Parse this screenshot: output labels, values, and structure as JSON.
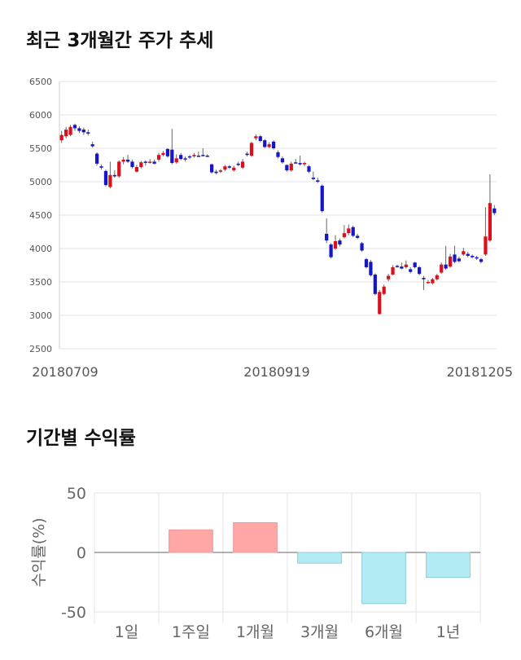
{
  "sections": {
    "price_title": "최근 3개월간 주가 추세",
    "returns_title": "기간별 수익률"
  },
  "colors": {
    "up": "#d9101e",
    "down": "#1416c8",
    "wick": "#666666",
    "pos_bar": "#ffa7a7",
    "neg_bar": "#b2ebf4",
    "grid": "#e3e3e3"
  },
  "chart_data": [
    {
      "type": "candlestick",
      "title": "최근 3개월간 주가 추세",
      "ylim": [
        2500,
        6500
      ],
      "yticks": [
        2500,
        3000,
        3500,
        4000,
        4500,
        5000,
        5500,
        6000,
        6500
      ],
      "xtick_labels": [
        "20180709",
        "20180919",
        "20181205"
      ],
      "grid": "horizontal",
      "candles": [
        {
          "o": 5620,
          "c": 5700,
          "h": 5760,
          "l": 5580
        },
        {
          "o": 5680,
          "c": 5780,
          "h": 5820,
          "l": 5650
        },
        {
          "o": 5700,
          "c": 5820,
          "h": 5850,
          "l": 5680
        },
        {
          "o": 5850,
          "c": 5800,
          "h": 5870,
          "l": 5760
        },
        {
          "o": 5800,
          "c": 5760,
          "h": 5830,
          "l": 5730
        },
        {
          "o": 5780,
          "c": 5740,
          "h": 5810,
          "l": 5700
        },
        {
          "o": 5740,
          "c": 5720,
          "h": 5780,
          "l": 5690
        },
        {
          "o": 5560,
          "c": 5530,
          "h": 5600,
          "l": 5510
        },
        {
          "o": 5420,
          "c": 5270,
          "h": 5440,
          "l": 5240
        },
        {
          "o": 5230,
          "c": 5210,
          "h": 5260,
          "l": 5180
        },
        {
          "o": 5160,
          "c": 4950,
          "h": 5180,
          "l": 4930
        },
        {
          "o": 4920,
          "c": 5100,
          "h": 5300,
          "l": 4900
        },
        {
          "o": 5100,
          "c": 5080,
          "h": 5170,
          "l": 5060
        },
        {
          "o": 5080,
          "c": 5300,
          "h": 5320,
          "l": 5060
        },
        {
          "o": 5300,
          "c": 5330,
          "h": 5370,
          "l": 5260
        },
        {
          "o": 5330,
          "c": 5300,
          "h": 5400,
          "l": 5280
        },
        {
          "o": 5300,
          "c": 5220,
          "h": 5330,
          "l": 5200
        },
        {
          "o": 5150,
          "c": 5220,
          "h": 5250,
          "l": 5140
        },
        {
          "o": 5220,
          "c": 5290,
          "h": 5310,
          "l": 5200
        },
        {
          "o": 5300,
          "c": 5290,
          "h": 5320,
          "l": 5240
        },
        {
          "o": 5290,
          "c": 5300,
          "h": 5340,
          "l": 5270
        },
        {
          "o": 5300,
          "c": 5270,
          "h": 5330,
          "l": 5260
        },
        {
          "o": 5330,
          "c": 5400,
          "h": 5430,
          "l": 5300
        },
        {
          "o": 5400,
          "c": 5430,
          "h": 5460,
          "l": 5380
        },
        {
          "o": 5490,
          "c": 5380,
          "h": 5500,
          "l": 5360
        },
        {
          "o": 5480,
          "c": 5280,
          "h": 5790,
          "l": 5260
        },
        {
          "o": 5290,
          "c": 5350,
          "h": 5410,
          "l": 5270
        },
        {
          "o": 5400,
          "c": 5340,
          "h": 5430,
          "l": 5320
        },
        {
          "o": 5350,
          "c": 5340,
          "h": 5380,
          "l": 5300
        },
        {
          "o": 5380,
          "c": 5370,
          "h": 5400,
          "l": 5340
        },
        {
          "o": 5380,
          "c": 5400,
          "h": 5430,
          "l": 5360
        },
        {
          "o": 5390,
          "c": 5380,
          "h": 5450,
          "l": 5370
        },
        {
          "o": 5400,
          "c": 5390,
          "h": 5500,
          "l": 5380
        },
        {
          "o": 5390,
          "c": 5380,
          "h": 5410,
          "l": 5370
        },
        {
          "o": 5260,
          "c": 5140,
          "h": 5270,
          "l": 5120
        },
        {
          "o": 5150,
          "c": 5130,
          "h": 5180,
          "l": 5110
        },
        {
          "o": 5150,
          "c": 5170,
          "h": 5190,
          "l": 5130
        },
        {
          "o": 5180,
          "c": 5230,
          "h": 5250,
          "l": 5160
        },
        {
          "o": 5230,
          "c": 5210,
          "h": 5250,
          "l": 5190
        },
        {
          "o": 5170,
          "c": 5210,
          "h": 5240,
          "l": 5150
        },
        {
          "o": 5270,
          "c": 5250,
          "h": 5300,
          "l": 5230
        },
        {
          "o": 5210,
          "c": 5300,
          "h": 5340,
          "l": 5190
        },
        {
          "o": 5420,
          "c": 5400,
          "h": 5450,
          "l": 5380
        },
        {
          "o": 5390,
          "c": 5580,
          "h": 5600,
          "l": 5370
        },
        {
          "o": 5650,
          "c": 5680,
          "h": 5710,
          "l": 5620
        },
        {
          "o": 5680,
          "c": 5610,
          "h": 5700,
          "l": 5590
        },
        {
          "o": 5620,
          "c": 5520,
          "h": 5640,
          "l": 5500
        },
        {
          "o": 5520,
          "c": 5560,
          "h": 5590,
          "l": 5500
        },
        {
          "o": 5600,
          "c": 5500,
          "h": 5620,
          "l": 5480
        },
        {
          "o": 5440,
          "c": 5370,
          "h": 5470,
          "l": 5350
        },
        {
          "o": 5350,
          "c": 5290,
          "h": 5380,
          "l": 5270
        },
        {
          "o": 5250,
          "c": 5170,
          "h": 5260,
          "l": 5150
        },
        {
          "o": 5170,
          "c": 5270,
          "h": 5300,
          "l": 5150
        },
        {
          "o": 5290,
          "c": 5280,
          "h": 5340,
          "l": 5270
        },
        {
          "o": 5280,
          "c": 5260,
          "h": 5390,
          "l": 5240
        },
        {
          "o": 5260,
          "c": 5280,
          "h": 5300,
          "l": 5230
        },
        {
          "o": 5230,
          "c": 5150,
          "h": 5250,
          "l": 5130
        },
        {
          "o": 5060,
          "c": 5040,
          "h": 5150,
          "l": 5020
        },
        {
          "o": 5020,
          "c": 5000,
          "h": 5060,
          "l": 4980
        },
        {
          "o": 4940,
          "c": 4560,
          "h": 4960,
          "l": 4540
        },
        {
          "o": 4220,
          "c": 4120,
          "h": 4450,
          "l": 4080
        },
        {
          "o": 4060,
          "c": 3870,
          "h": 4080,
          "l": 3850
        },
        {
          "o": 4000,
          "c": 4110,
          "h": 4200,
          "l": 3980
        },
        {
          "o": 4120,
          "c": 4060,
          "h": 4150,
          "l": 4030
        },
        {
          "o": 4170,
          "c": 4230,
          "h": 4350,
          "l": 4150
        },
        {
          "o": 4230,
          "c": 4300,
          "h": 4360,
          "l": 4200
        },
        {
          "o": 4320,
          "c": 4190,
          "h": 4340,
          "l": 4170
        },
        {
          "o": 4190,
          "c": 4160,
          "h": 4220,
          "l": 4140
        },
        {
          "o": 4080,
          "c": 3970,
          "h": 4100,
          "l": 3950
        },
        {
          "o": 3840,
          "c": 3720,
          "h": 3860,
          "l": 3700
        },
        {
          "o": 3800,
          "c": 3600,
          "h": 3830,
          "l": 3580
        },
        {
          "o": 3610,
          "c": 3320,
          "h": 3630,
          "l": 3300
        },
        {
          "o": 3020,
          "c": 3350,
          "h": 3380,
          "l": 3010
        },
        {
          "o": 3320,
          "c": 3430,
          "h": 3460,
          "l": 3300
        },
        {
          "o": 3540,
          "c": 3590,
          "h": 3620,
          "l": 3510
        },
        {
          "o": 3610,
          "c": 3720,
          "h": 3750,
          "l": 3600
        },
        {
          "o": 3740,
          "c": 3730,
          "h": 3760,
          "l": 3710
        },
        {
          "o": 3730,
          "c": 3700,
          "h": 3790,
          "l": 3690
        },
        {
          "o": 3720,
          "c": 3760,
          "h": 3820,
          "l": 3700
        },
        {
          "o": 3690,
          "c": 3650,
          "h": 3720,
          "l": 3630
        },
        {
          "o": 3790,
          "c": 3720,
          "h": 3800,
          "l": 3700
        },
        {
          "o": 3720,
          "c": 3620,
          "h": 3740,
          "l": 3600
        },
        {
          "o": 3560,
          "c": 3540,
          "h": 3590,
          "l": 3380
        },
        {
          "o": 3490,
          "c": 3500,
          "h": 3530,
          "l": 3470
        },
        {
          "o": 3480,
          "c": 3540,
          "h": 3560,
          "l": 3460
        },
        {
          "o": 3540,
          "c": 3600,
          "h": 3620,
          "l": 3520
        },
        {
          "o": 3640,
          "c": 3760,
          "h": 3790,
          "l": 3620
        },
        {
          "o": 3760,
          "c": 3700,
          "h": 4040,
          "l": 3680
        },
        {
          "o": 3730,
          "c": 3880,
          "h": 3920,
          "l": 3710
        },
        {
          "o": 3910,
          "c": 3800,
          "h": 4040,
          "l": 3780
        },
        {
          "o": 3850,
          "c": 3810,
          "h": 3880,
          "l": 3790
        },
        {
          "o": 3910,
          "c": 3960,
          "h": 4010,
          "l": 3890
        },
        {
          "o": 3920,
          "c": 3890,
          "h": 3950,
          "l": 3870
        },
        {
          "o": 3890,
          "c": 3870,
          "h": 3910,
          "l": 3850
        },
        {
          "o": 3870,
          "c": 3850,
          "h": 3890,
          "l": 3830
        },
        {
          "o": 3840,
          "c": 3800,
          "h": 3860,
          "l": 3780
        },
        {
          "o": 3910,
          "c": 4180,
          "h": 4620,
          "l": 3890
        },
        {
          "o": 4120,
          "c": 4680,
          "h": 5110,
          "l": 4100
        },
        {
          "o": 4600,
          "c": 4530,
          "h": 4650,
          "l": 4500
        }
      ]
    },
    {
      "type": "bar",
      "title": "기간별 수익률",
      "ylabel": "수익률(%)",
      "ylim": [
        -50,
        50
      ],
      "yticks": [
        50,
        0,
        -50
      ],
      "categories": [
        "1일",
        "1주일",
        "1개월",
        "3개월",
        "6개월",
        "1년"
      ],
      "values": [
        0,
        19,
        25,
        -9,
        -43,
        -21
      ],
      "grid": "vertical"
    }
  ]
}
